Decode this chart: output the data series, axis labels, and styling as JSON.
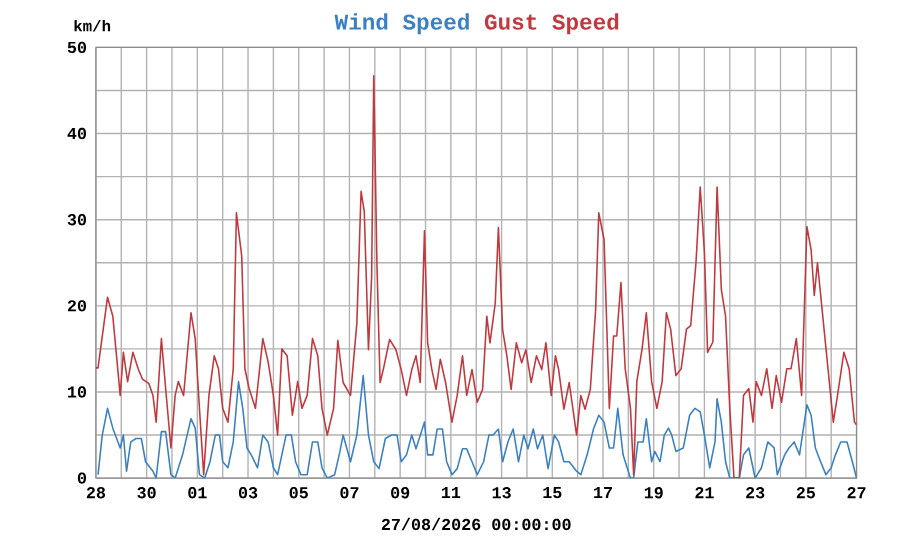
{
  "chart_data": {
    "type": "line",
    "ylabel": "km/h",
    "xlabel": "27/08/2026 00:00:00",
    "xlim": [
      "2026-07-28T00:00",
      "2026-08-27T00:00"
    ],
    "xticks": [
      {
        "value": "2026-07-28",
        "label": "28"
      },
      {
        "value": "2026-07-30",
        "label": "30"
      },
      {
        "value": "2026-08-01",
        "label": "01"
      },
      {
        "value": "2026-08-03",
        "label": "03"
      },
      {
        "value": "2026-08-05",
        "label": "05"
      },
      {
        "value": "2026-08-07",
        "label": "07"
      },
      {
        "value": "2026-08-09",
        "label": "09"
      },
      {
        "value": "2026-08-11",
        "label": "11"
      },
      {
        "value": "2026-08-13",
        "label": "13"
      },
      {
        "value": "2026-08-15",
        "label": "15"
      },
      {
        "value": "2026-08-17",
        "label": "17"
      },
      {
        "value": "2026-08-19",
        "label": "19"
      },
      {
        "value": "2026-08-21",
        "label": "21"
      },
      {
        "value": "2026-08-23",
        "label": "23"
      },
      {
        "value": "2026-08-25",
        "label": "25"
      },
      {
        "value": "2026-08-27",
        "label": "27"
      }
    ],
    "ylim": [
      0,
      50
    ],
    "yticks": [
      0,
      10,
      20,
      30,
      40,
      50
    ],
    "grid": true,
    "legend": "top",
    "marker": "none",
    "line_style": "solid",
    "series": [
      {
        "name": "Wind Speed",
        "color": "#3a80c3",
        "x": [
          "2026-07-28T02:00",
          "2026-07-28T06:00",
          "2026-07-28T11:00",
          "2026-07-28T16:00",
          "2026-07-28T23:00",
          "2026-07-29T02:00",
          "2026-07-29T05:00",
          "2026-07-29T09:00",
          "2026-07-29T14:00",
          "2026-07-29T19:00",
          "2026-07-29T23:00",
          "2026-07-30T06:00",
          "2026-07-30T09:00",
          "2026-07-30T14:00",
          "2026-07-30T18:00",
          "2026-07-30T23:00",
          "2026-07-31T03:00",
          "2026-07-31T10:00",
          "2026-07-31T18:00",
          "2026-07-31T22:00",
          "2026-08-01T02:00",
          "2026-08-01T07:00",
          "2026-08-01T12:00",
          "2026-08-01T17:00",
          "2026-08-01T21:00",
          "2026-08-02T00:00",
          "2026-08-02T05:00",
          "2026-08-02T10:00",
          "2026-08-02T15:00",
          "2026-08-02T19:00",
          "2026-08-02T23:00",
          "2026-08-03T03:00",
          "2026-08-03T09:00",
          "2026-08-03T14:00",
          "2026-08-03T19:00",
          "2026-08-04T00:00",
          "2026-08-04T04:00",
          "2026-08-04T12:00",
          "2026-08-04T17:00",
          "2026-08-04T21:00",
          "2026-08-05T02:00",
          "2026-08-05T08:00",
          "2026-08-05T13:00",
          "2026-08-05T18:00",
          "2026-08-05T22:00",
          "2026-08-06T03:00",
          "2026-08-06T10:00",
          "2026-08-06T15:00",
          "2026-08-06T18:00",
          "2026-08-07T01:00",
          "2026-08-07T07:00",
          "2026-08-07T13:00",
          "2026-08-07T18:00",
          "2026-08-07T23:00",
          "2026-08-08T04:00",
          "2026-08-08T10:00",
          "2026-08-08T16:00",
          "2026-08-08T21:00",
          "2026-08-09T01:00",
          "2026-08-09T06:00",
          "2026-08-09T11:00",
          "2026-08-09T15:00",
          "2026-08-09T23:00",
          "2026-08-10T02:00",
          "2026-08-10T07:00",
          "2026-08-10T11:00",
          "2026-08-10T16:00",
          "2026-08-10T20:00",
          "2026-08-11T01:00",
          "2026-08-11T06:00",
          "2026-08-11T11:00",
          "2026-08-11T15:00",
          "2026-08-11T20:00",
          "2026-08-12T01:00",
          "2026-08-12T07:00",
          "2026-08-12T12:00",
          "2026-08-12T16:00",
          "2026-08-12T21:00",
          "2026-08-13T01:00",
          "2026-08-13T06:00",
          "2026-08-13T11:00",
          "2026-08-13T16:00",
          "2026-08-13T21:00",
          "2026-08-14T01:00",
          "2026-08-14T06:00",
          "2026-08-14T10:00",
          "2026-08-14T15:00",
          "2026-08-14T20:00",
          "2026-08-15T02:00",
          "2026-08-15T06:00",
          "2026-08-15T11:00",
          "2026-08-15T16:00",
          "2026-08-15T23:00",
          "2026-08-16T03:00",
          "2026-08-16T09:00",
          "2026-08-16T15:00",
          "2026-08-16T20:00",
          "2026-08-17T01:00",
          "2026-08-17T06:00",
          "2026-08-17T10:00",
          "2026-08-17T14:00",
          "2026-08-17T19:00",
          "2026-08-18T02:00",
          "2026-08-18T05:00",
          "2026-08-18T09:00",
          "2026-08-18T14:00",
          "2026-08-18T17:00",
          "2026-08-18T22:00",
          "2026-08-19T01:00",
          "2026-08-19T06:00",
          "2026-08-19T10:00",
          "2026-08-19T14:00",
          "2026-08-19T17:00",
          "2026-08-19T21:00",
          "2026-08-20T04:00",
          "2026-08-20T10:00",
          "2026-08-20T15:00",
          "2026-08-20T20:00",
          "2026-08-21T00:00",
          "2026-08-21T05:00",
          "2026-08-21T10:00",
          "2026-08-21T12:00",
          "2026-08-21T16:00",
          "2026-08-21T20:00",
          "2026-08-22T00:00",
          "2026-08-22T09:00",
          "2026-08-22T13:00",
          "2026-08-22T18:00",
          "2026-08-23T00:00",
          "2026-08-23T06:00",
          "2026-08-23T12:00",
          "2026-08-23T18:00",
          "2026-08-23T21:00",
          "2026-08-24T04:00",
          "2026-08-24T08:00",
          "2026-08-24T13:00",
          "2026-08-24T18:00",
          "2026-08-25T01:00",
          "2026-08-25T05:00",
          "2026-08-25T09:00",
          "2026-08-25T14:00",
          "2026-08-25T19:00",
          "2026-08-26T00:00",
          "2026-08-26T04:00",
          "2026-08-26T09:00",
          "2026-08-26T15:00",
          "2026-08-26T20:00",
          "2026-08-27T00:00"
        ],
        "values": [
          0.4,
          5,
          8.1,
          5.8,
          3.5,
          5,
          0.8,
          4.2,
          4.6,
          4.6,
          1.9,
          0.8,
          0,
          5.4,
          5.4,
          0.4,
          0,
          2.7,
          6.9,
          5.8,
          0.4,
          0,
          1.9,
          5,
          5,
          1.9,
          1.2,
          4.2,
          11.2,
          8.1,
          3.5,
          2.7,
          1.2,
          5,
          4.2,
          1.2,
          0.4,
          5,
          5,
          1.9,
          0.4,
          0.4,
          4.2,
          4.2,
          1.2,
          0,
          0.4,
          3.1,
          5,
          1.9,
          5,
          11.9,
          5,
          1.9,
          1.1,
          4.6,
          5,
          5,
          1.9,
          2.7,
          5,
          3.4,
          6.5,
          2.7,
          2.7,
          5.7,
          5.7,
          1.9,
          0.4,
          1.1,
          3.4,
          3.4,
          1.9,
          0.4,
          1.9,
          5,
          5,
          5.7,
          1.9,
          4.2,
          5.7,
          1.9,
          5,
          3.4,
          5.7,
          3.4,
          5,
          1.1,
          5,
          4.2,
          1.9,
          1.9,
          0.8,
          0.4,
          2.7,
          5.7,
          7.3,
          6.5,
          3.5,
          3.5,
          8.1,
          2.7,
          0,
          0,
          4.2,
          4.2,
          6.9,
          1.9,
          3.1,
          1.9,
          5,
          5.8,
          5,
          3.1,
          3.5,
          7.3,
          8.1,
          7.7,
          5,
          1.2,
          4.2,
          9.2,
          6.5,
          1.9,
          0,
          0,
          2.7,
          3.5,
          0,
          1.2,
          4.2,
          3.5,
          0.4,
          2.7,
          3.5,
          4.2,
          2.7,
          8.5,
          7.3,
          3.5,
          1.9,
          0.4,
          1.2,
          2.7,
          4.2,
          4.2,
          1.9,
          0
        ]
      },
      {
        "name": "Gust Speed",
        "color": "#c0393e",
        "x": [
          "2026-07-28T00:00",
          "2026-07-28T02:00",
          "2026-07-28T11:00",
          "2026-07-28T16:00",
          "2026-07-28T23:00",
          "2026-07-29T02:00",
          "2026-07-29T06:00",
          "2026-07-29T11:00",
          "2026-07-29T16:00",
          "2026-07-29T20:00",
          "2026-07-30T02:00",
          "2026-07-30T06:00",
          "2026-07-30T09:00",
          "2026-07-30T14:00",
          "2026-07-30T18:00",
          "2026-07-30T23:00",
          "2026-07-31T03:00",
          "2026-07-31T06:00",
          "2026-07-31T11:00",
          "2026-07-31T18:00",
          "2026-07-31T22:00",
          "2026-08-01T02:00",
          "2026-08-01T06:00",
          "2026-08-01T11:00",
          "2026-08-01T16:00",
          "2026-08-01T20:00",
          "2026-08-02T00:00",
          "2026-08-02T05:00",
          "2026-08-02T10:00",
          "2026-08-02T13:00",
          "2026-08-02T18:00",
          "2026-08-02T21:00",
          "2026-08-03T01:00",
          "2026-08-03T07:00",
          "2026-08-03T14:00",
          "2026-08-03T19:00",
          "2026-08-04T00:00",
          "2026-08-04T04:00",
          "2026-08-04T08:00",
          "2026-08-04T13:00",
          "2026-08-04T18:00",
          "2026-08-04T23:00",
          "2026-08-05T03:00",
          "2026-08-05T08:00",
          "2026-08-05T13:00",
          "2026-08-05T18:00",
          "2026-08-05T22:00",
          "2026-08-06T03:00",
          "2026-08-06T09:00",
          "2026-08-06T13:00",
          "2026-08-06T18:00",
          "2026-08-07T01:00",
          "2026-08-07T07:00",
          "2026-08-07T11:00",
          "2026-08-07T14:00",
          "2026-08-07T18:00",
          "2026-08-07T21:00",
          "2026-08-07T23:00",
          "2026-08-08T02:00",
          "2026-08-08T05:00",
          "2026-08-08T08:00",
          "2026-08-08T14:00",
          "2026-08-08T20:00",
          "2026-08-09T01:00",
          "2026-08-09T06:00",
          "2026-08-09T11:00",
          "2026-08-09T15:00",
          "2026-08-09T19:00",
          "2026-08-09T23:00",
          "2026-08-10T02:00",
          "2026-08-10T06:00",
          "2026-08-10T10:00",
          "2026-08-10T14:00",
          "2026-08-10T19:00",
          "2026-08-11T01:00",
          "2026-08-11T06:00",
          "2026-08-11T11:00",
          "2026-08-11T15:00",
          "2026-08-11T20:00",
          "2026-08-12T01:00",
          "2026-08-12T06:00",
          "2026-08-12T10:00",
          "2026-08-12T13:00",
          "2026-08-12T18:00",
          "2026-08-12T21:00",
          "2026-08-13T01:00",
          "2026-08-13T05:00",
          "2026-08-13T09:00",
          "2026-08-13T14:00",
          "2026-08-13T19:00",
          "2026-08-13T23:00",
          "2026-08-14T04:00",
          "2026-08-14T09:00",
          "2026-08-14T14:00",
          "2026-08-14T18:00",
          "2026-08-14T23:00",
          "2026-08-15T03:00",
          "2026-08-15T06:00",
          "2026-08-15T11:00",
          "2026-08-15T16:00",
          "2026-08-15T23:00",
          "2026-08-16T03:00",
          "2026-08-16T07:00",
          "2026-08-16T12:00",
          "2026-08-16T17:00",
          "2026-08-16T20:00",
          "2026-08-17T01:00",
          "2026-08-17T06:00",
          "2026-08-17T10:00",
          "2026-08-17T13:00",
          "2026-08-17T17:00",
          "2026-08-17T21:00",
          "2026-08-18T02:00",
          "2026-08-18T05:00",
          "2026-08-18T08:00",
          "2026-08-18T13:00",
          "2026-08-18T17:00",
          "2026-08-18T22:00",
          "2026-08-19T03:00",
          "2026-08-19T08:00",
          "2026-08-19T12:00",
          "2026-08-19T16:00",
          "2026-08-19T21:00",
          "2026-08-20T02:00",
          "2026-08-20T07:00",
          "2026-08-20T11:00",
          "2026-08-20T16:00",
          "2026-08-20T20:00",
          "2026-08-21T00:00",
          "2026-08-21T03:00",
          "2026-08-21T08:00",
          "2026-08-21T12:00",
          "2026-08-21T16:00",
          "2026-08-21T20:00",
          "2026-08-22T00:00",
          "2026-08-22T04:00",
          "2026-08-22T09:00",
          "2026-08-22T13:00",
          "2026-08-22T18:00",
          "2026-08-22T22:00",
          "2026-08-23T01:00",
          "2026-08-23T06:00",
          "2026-08-23T11:00",
          "2026-08-23T16:00",
          "2026-08-23T20:00",
          "2026-08-24T01:00",
          "2026-08-24T06:00",
          "2026-08-24T10:00",
          "2026-08-24T15:00",
          "2026-08-24T20:00",
          "2026-08-25T01:00",
          "2026-08-25T05:00",
          "2026-08-25T08:00",
          "2026-08-25T11:00",
          "2026-08-25T16:00",
          "2026-08-25T21:00",
          "2026-08-26T02:00",
          "2026-08-26T06:00",
          "2026-08-26T12:00",
          "2026-08-26T17:00",
          "2026-08-26T22:00",
          "2026-08-27T00:00"
        ],
        "values": [
          12.8,
          12.8,
          21,
          18.8,
          9.6,
          14.6,
          11.2,
          14.6,
          12.7,
          11.5,
          11,
          9.6,
          6.5,
          16.2,
          10.4,
          3.5,
          9.6,
          11.2,
          9.6,
          19.2,
          16.2,
          8.1,
          0.4,
          9.6,
          14.2,
          12.7,
          8.1,
          6.5,
          12.7,
          30.8,
          25.8,
          12.7,
          10.4,
          8.1,
          16.2,
          13.5,
          9.6,
          5,
          15,
          14.2,
          7.3,
          11.2,
          8.1,
          9.6,
          16.2,
          14.2,
          8.1,
          5,
          8.1,
          16,
          11.1,
          9.6,
          18,
          33.3,
          31,
          14.9,
          23.4,
          46.7,
          24.9,
          11.1,
          12.6,
          16.1,
          14.9,
          12.6,
          9.6,
          12.6,
          14.2,
          11.1,
          28.7,
          15.7,
          12.6,
          10.3,
          13.8,
          11.1,
          6.5,
          9.6,
          14.2,
          9.6,
          12.6,
          8.8,
          10.3,
          18.8,
          15.7,
          20.3,
          29.1,
          17.2,
          14.2,
          10.3,
          15.7,
          13.4,
          14.9,
          11.1,
          14.2,
          12.6,
          15.7,
          9.6,
          14.2,
          12.6,
          8,
          11.1,
          5,
          9.6,
          8,
          10.3,
          19.5,
          30.8,
          27.7,
          8.1,
          16.5,
          16.5,
          22.7,
          12.7,
          8.1,
          0.4,
          11.2,
          15,
          19.2,
          11.2,
          8.1,
          11.2,
          19.2,
          17.3,
          11.9,
          12.7,
          17.3,
          17.7,
          25,
          33.8,
          26.2,
          14.6,
          15.8,
          33.8,
          21.9,
          18.8,
          8.1,
          0,
          0,
          9.6,
          10.4,
          6.5,
          11.2,
          9.6,
          12.7,
          8.1,
          11.9,
          8.8,
          12.7,
          12.7,
          16.2,
          9.6,
          29.2,
          26.5,
          21.2,
          25,
          18.8,
          12.7,
          6.5,
          9.6,
          14.6,
          12.7,
          6.5,
          6.2
        ]
      }
    ]
  }
}
